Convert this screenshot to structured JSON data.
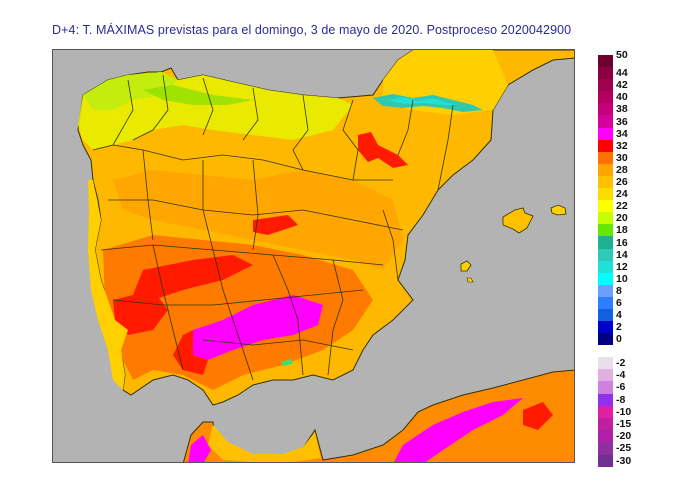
{
  "title": "D+4: T. MÁXIMAS previstas para el domingo, 3 de mayo de 2020. Postproceso 2020042900",
  "map": {
    "sea_color": "#b3b3b3",
    "frame_color": "#555555",
    "border_color": "#333300",
    "region": "Península Ibérica, Baleares y norte de África"
  },
  "legend": {
    "positive": {
      "labels": [
        "50",
        "44",
        "42",
        "40",
        "38",
        "36",
        "34",
        "32",
        "30",
        "28",
        "26",
        "24",
        "22",
        "20",
        "18",
        "16",
        "14",
        "12",
        "10",
        "8",
        "6",
        "4",
        "2",
        "0"
      ],
      "colors": [
        "#6e0030",
        "#8a0040",
        "#a00050",
        "#b30060",
        "#c4007a",
        "#d6009a",
        "#ff00ff",
        "#ff0000",
        "#ff7200",
        "#ffa500",
        "#ffc000",
        "#ffdc00",
        "#ffff00",
        "#c8ff00",
        "#66e600",
        "#20b090",
        "#30c8b8",
        "#20e0d8",
        "#00ffff",
        "#6aa0ff",
        "#2e7fff",
        "#1060e0",
        "#0000cc",
        "#000080"
      ]
    },
    "negative": {
      "labels": [
        "-2",
        "-4",
        "-6",
        "-8",
        "-10",
        "-15",
        "-20",
        "-25",
        "-30"
      ],
      "colors": [
        "#e8e0e8",
        "#e0b0e0",
        "#d080e0",
        "#9030f0",
        "#e020a0",
        "#c020a0",
        "#b020a8",
        "#9030a0",
        "#703090"
      ]
    }
  }
}
